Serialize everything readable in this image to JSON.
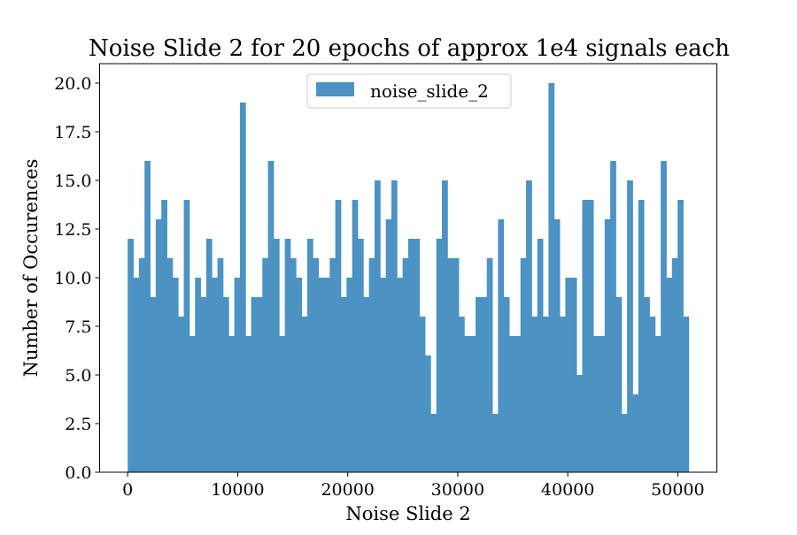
{
  "chart_data": {
    "type": "bar",
    "title": "Noise Slide 2 for 20 epochs of approx 1e4 signals each",
    "xlabel": "Noise Slide 2",
    "ylabel": "Number of Occurences",
    "xlim": [
      -2550,
      53550
    ],
    "ylim": [
      0,
      21
    ],
    "x_ticks": [
      0,
      10000,
      20000,
      30000,
      40000,
      50000
    ],
    "x_tick_labels": [
      "0",
      "10000",
      "20000",
      "30000",
      "40000",
      "50000"
    ],
    "y_ticks": [
      0,
      2.5,
      5,
      7.5,
      10,
      12.5,
      15,
      17.5,
      20
    ],
    "y_tick_labels": [
      "0.0",
      "2.5",
      "5.0",
      "7.5",
      "10.0",
      "12.5",
      "15.0",
      "17.5",
      "20.0"
    ],
    "bin_start": 0,
    "bin_end": 51000,
    "bin_count": 100,
    "bar_color": "#4c92c3",
    "legend": {
      "position": "upper center",
      "entries": [
        "noise_slide_2"
      ]
    },
    "series": [
      {
        "name": "noise_slide_2",
        "values": [
          12,
          10,
          11,
          16,
          9,
          13,
          14,
          11,
          10,
          8,
          14,
          7,
          10,
          9,
          12,
          10,
          11,
          9,
          7,
          10,
          19,
          7,
          9,
          9,
          11,
          16,
          12,
          7,
          12,
          11,
          10,
          8,
          12,
          11,
          10,
          10,
          11,
          14,
          9,
          10,
          14,
          12,
          9,
          11,
          15,
          10,
          13,
          15,
          10,
          11,
          12,
          12,
          8,
          6,
          3,
          12,
          15,
          11,
          11,
          8,
          7,
          7,
          9,
          9,
          11,
          3,
          13,
          9,
          7,
          7,
          11,
          15,
          8,
          12,
          8,
          20,
          13,
          8,
          10,
          10,
          5,
          14,
          14,
          7,
          7,
          13,
          16,
          9,
          3,
          15,
          4,
          14,
          9,
          8,
          7,
          16,
          10,
          11,
          14,
          8
        ]
      }
    ]
  }
}
